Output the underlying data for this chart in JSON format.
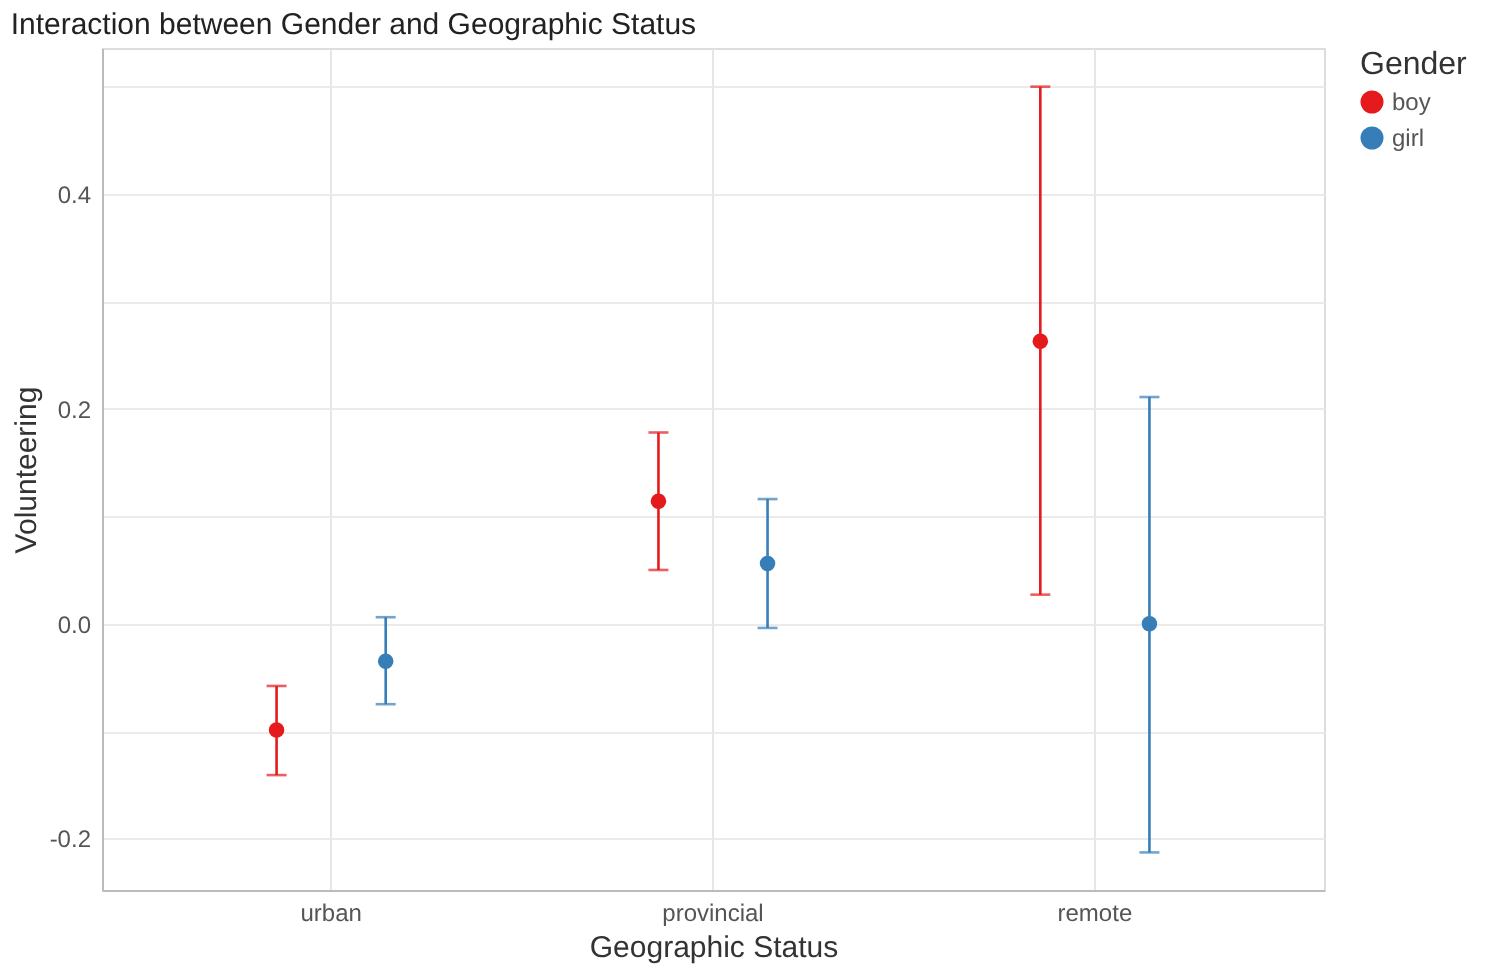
{
  "chart_data": {
    "type": "scatter",
    "title": "Interaction between Gender and Geographic Status",
    "xlabel": "Geographic Status",
    "ylabel": "Volunteering",
    "legend_title": "Gender",
    "categories": [
      "urban",
      "provincial",
      "remote"
    ],
    "series": [
      {
        "name": "boy",
        "color": "#e41a1c",
        "values": [
          -0.099,
          0.114,
          0.263
        ],
        "errors": [
          [
            -0.141,
            -0.058
          ],
          [
            0.05,
            0.178
          ],
          [
            0.027,
            0.5
          ]
        ]
      },
      {
        "name": "girl",
        "color": "#377eb8",
        "values": [
          -0.035,
          0.056,
          0.0
        ],
        "errors": [
          [
            -0.075,
            0.006
          ],
          [
            -0.004,
            0.116
          ],
          [
            -0.213,
            0.211
          ]
        ]
      }
    ],
    "ylim": [
      -0.248,
      0.536
    ],
    "yticks": [
      {
        "value": -0.2,
        "label": "-0.2"
      },
      {
        "value": -0.1,
        "label": null
      },
      {
        "value": 0.0,
        "label": "0.0"
      },
      {
        "value": 0.1,
        "label": null
      },
      {
        "value": 0.2,
        "label": "0.2"
      },
      {
        "value": 0.3,
        "label": null
      },
      {
        "value": 0.4,
        "label": "0.4"
      },
      {
        "value": 0.5,
        "label": null
      }
    ],
    "grid": true,
    "legend": "right",
    "marker": "circle"
  }
}
